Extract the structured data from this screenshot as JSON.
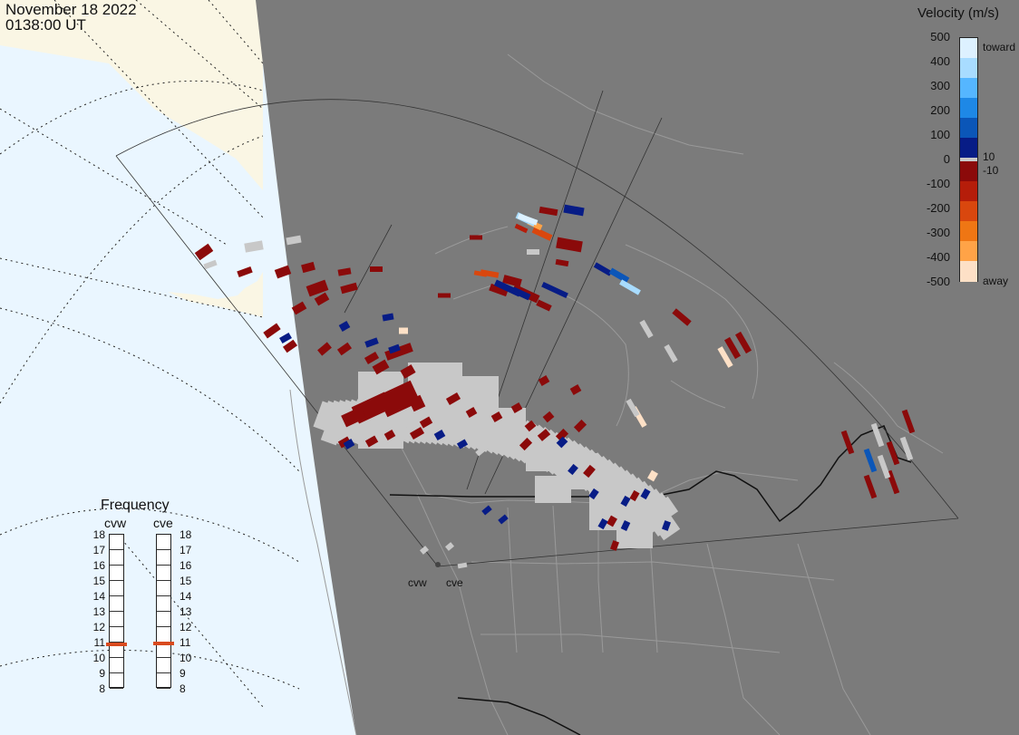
{
  "header": {
    "date": "November 18 2022",
    "time": "0138:00 UT"
  },
  "legend": {
    "title": "Velocity (m/s)",
    "ticks": [
      "500",
      "400",
      "300",
      "200",
      "100",
      "0",
      "-100",
      "-200",
      "-300",
      "-400",
      "-500"
    ],
    "side_labels": {
      "toward": "toward",
      "away": "away",
      "pos_min": "10",
      "neg_min": "-10"
    },
    "colors": {
      "toward": [
        "#ddf1ff",
        "#a8dcff",
        "#55b6ff",
        "#1e88e6",
        "#0b56b8",
        "#071c86"
      ],
      "away": [
        "#8b0a0a",
        "#b51d0a",
        "#d9470e",
        "#ef7614",
        "#ffa347",
        "#fde0c6"
      ],
      "ground_scatter": "#c8c8c8"
    }
  },
  "frequency": {
    "title": "Frequency",
    "radars": [
      {
        "code": "cvw",
        "value_mhz": 10.8
      },
      {
        "code": "cve",
        "value_mhz": 10.9
      }
    ],
    "scale": [
      "18",
      "17",
      "16",
      "15",
      "14",
      "13",
      "12",
      "11",
      "10",
      "9",
      "8"
    ]
  },
  "map": {
    "radar_sites": [
      "cvw",
      "cve"
    ],
    "colors": {
      "land_outside": "#faf6e4",
      "ocean_outside": "#eaf6ff",
      "night_shade": "#7b7b7b",
      "border": "#111111"
    }
  }
}
